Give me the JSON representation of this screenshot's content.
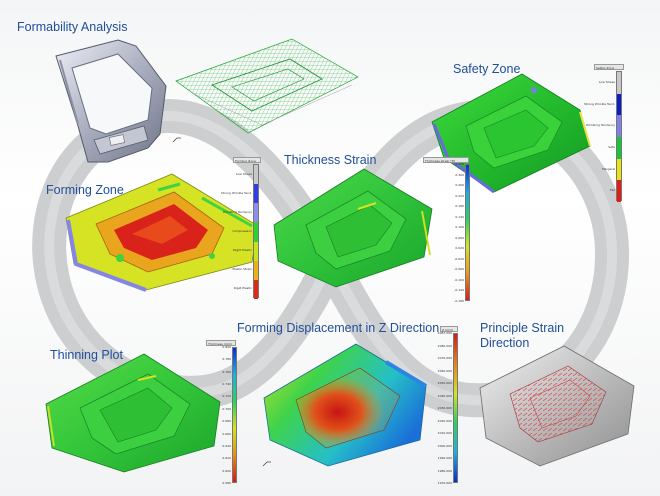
{
  "titles": {
    "formability": "Formability Analysis",
    "safety_zone": "Safety Zone",
    "thickness_strain": "Thickness Strain",
    "forming_zone": "Forming Zone",
    "thinning_plot": "Thinning Plot",
    "displacement_z": "Forming Displacement in Z Direction",
    "principle_strain_line1": "Principle Strain",
    "principle_strain_line2": "Direction"
  },
  "legends": {
    "safety": {
      "header": "Safety Zone",
      "colors": [
        "#c8c8c8",
        "#0d1fc4",
        "#7f7fe6",
        "#17c43a",
        "#e7e317",
        "#e21d18"
      ],
      "labels": [
        "Low Stress",
        "Strong Wrinkle Tend.",
        "Wrinkling Tendency",
        "Safe",
        "Marginal",
        "Fail"
      ]
    },
    "forming": {
      "header": "Forming Zone",
      "colors": [
        "#c8c8c8",
        "#2f3fe0",
        "#8f8fea",
        "#2ecf38",
        "#c9e21d",
        "#e9b21c",
        "#dc2b19"
      ],
      "labels": [
        "Low Stress",
        "Strong Wrinkle Tend.",
        "Wrinkling Tendency",
        "Compression",
        "Slight Plastic",
        "Plastic Strain",
        "Rigid Plastic"
      ]
    },
    "thickness": {
      "header": "Thickness strain (Tr)",
      "colors": [
        "#0b2fd0",
        "#1fa7e6",
        "#27d263",
        "#d5e321",
        "#e79a1d",
        "#d91c16"
      ],
      "labels": [
        "0.340",
        "0.300",
        "0.260",
        "0.220",
        "0.180",
        "0.140",
        "0.100",
        "0.060",
        "0.020",
        "-0.020",
        "-0.060",
        "-0.100",
        "-0.140",
        "-0.180"
      ]
    },
    "thinning": {
      "header": "Thickness (mm)",
      "colors": [
        "#0b2fd0",
        "#1fb0e2",
        "#28d35e",
        "#d6e21f",
        "#e48f1c",
        "#d41914"
      ],
      "labels": [
        "0.800",
        "0.780",
        "0.760",
        "0.740",
        "0.720",
        "0.700",
        "0.680",
        "0.660",
        "0.640",
        "0.620",
        "0.600",
        "0.580"
      ]
    },
    "displacement": {
      "header": "Z (mm)",
      "colors": [
        "#d91a14",
        "#e3841c",
        "#d8e222",
        "#29d15f",
        "#1eb0e0",
        "#0b2ccf"
      ],
      "labels": [
        "2087.000",
        "2080.000",
        "2070.000",
        "2060.000",
        "2050.000",
        "2040.000",
        "2030.000",
        "2020.000",
        "2010.000",
        "2000.000",
        "1990.000",
        "1980.000",
        "1970.000"
      ]
    }
  }
}
